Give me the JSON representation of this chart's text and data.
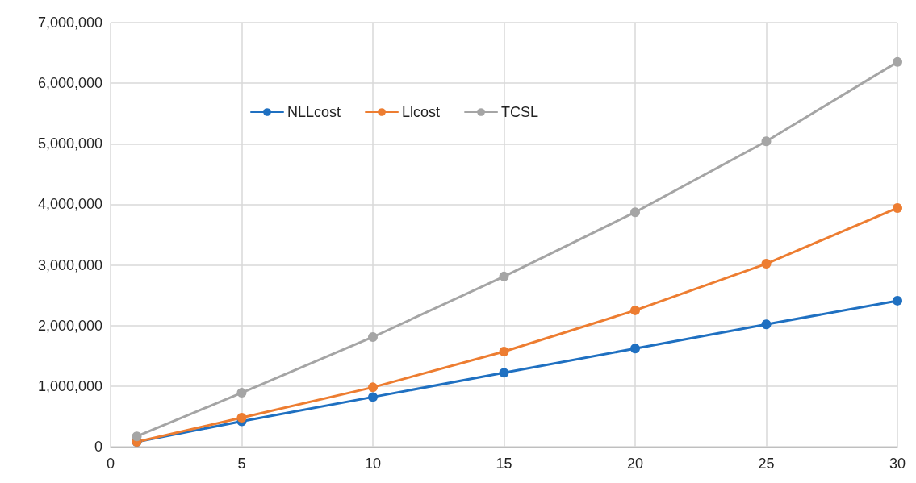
{
  "chart_data": {
    "type": "line",
    "x": [
      1,
      5,
      10,
      15,
      20,
      25,
      30
    ],
    "series": [
      {
        "name": "NLLcost",
        "color": "#1f70c1",
        "values": [
          80000,
          420000,
          820000,
          1220000,
          1620000,
          2020000,
          2410000
        ]
      },
      {
        "name": "Llcost",
        "color": "#ed7d31",
        "values": [
          80000,
          480000,
          980000,
          1570000,
          2250000,
          3020000,
          3940000
        ]
      },
      {
        "name": "TCSL",
        "color": "#a5a5a5",
        "values": [
          170000,
          890000,
          1810000,
          2810000,
          3870000,
          5040000,
          6350000
        ]
      }
    ],
    "xlim": [
      0,
      30
    ],
    "xticks": [
      0,
      5,
      10,
      15,
      20,
      25,
      30
    ],
    "ylim": [
      0,
      7000000
    ],
    "yticks": [
      0,
      {
        "value": 1000000,
        "label": "1,000,000"
      },
      {
        "value": 2000000,
        "label": "2,000,000"
      },
      {
        "value": 3000000,
        "label": "3,000,000"
      },
      {
        "value": 4000000,
        "label": "4,000,000"
      },
      {
        "value": 5000000,
        "label": "5,000,000"
      },
      {
        "value": 6000000,
        "label": "6,000,000"
      },
      {
        "value": 7000000,
        "label": "7,000,000"
      }
    ],
    "grid": true,
    "legend": "top left",
    "marker": "circle",
    "line_style": "solid"
  }
}
